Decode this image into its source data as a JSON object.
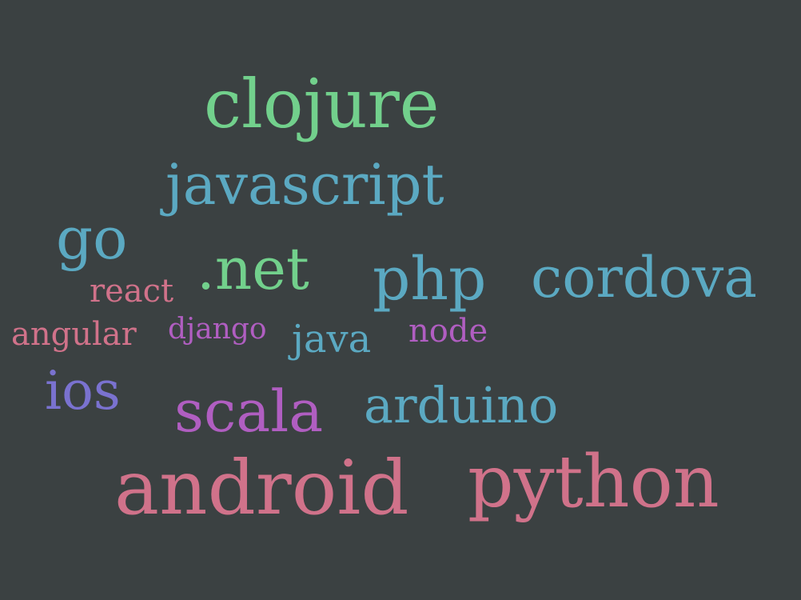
{
  "background_color": "#3b4142",
  "colors": {
    "green": "#72d08c",
    "blue": "#5ba9c2",
    "pink": "#d0728a",
    "purple": "#b05ec1",
    "indigo": "#7a72d0"
  },
  "words": [
    {
      "id": "clojure",
      "text": "clojure",
      "color": "#72d08c"
    },
    {
      "id": "javascript",
      "text": "javascript",
      "color": "#5ba9c2"
    },
    {
      "id": "go",
      "text": "go",
      "color": "#5ba9c2"
    },
    {
      "id": "net",
      "text": ".net",
      "color": "#72d08c"
    },
    {
      "id": "php",
      "text": "php",
      "color": "#5ba9c2"
    },
    {
      "id": "cordova",
      "text": "cordova",
      "color": "#5ba9c2"
    },
    {
      "id": "react",
      "text": "react",
      "color": "#d0728a"
    },
    {
      "id": "angular",
      "text": "angular",
      "color": "#d0728a"
    },
    {
      "id": "django",
      "text": "django",
      "color": "#b05ec1"
    },
    {
      "id": "java",
      "text": "java",
      "color": "#5ba9c2"
    },
    {
      "id": "node",
      "text": "node",
      "color": "#b05ec1"
    },
    {
      "id": "ios",
      "text": "ios",
      "color": "#7a72d0"
    },
    {
      "id": "scala",
      "text": "scala",
      "color": "#b05ec1"
    },
    {
      "id": "arduino",
      "text": "arduino",
      "color": "#5ba9c2"
    },
    {
      "id": "android",
      "text": "android",
      "color": "#d0728a"
    },
    {
      "id": "python",
      "text": "python",
      "color": "#d0728a"
    }
  ]
}
